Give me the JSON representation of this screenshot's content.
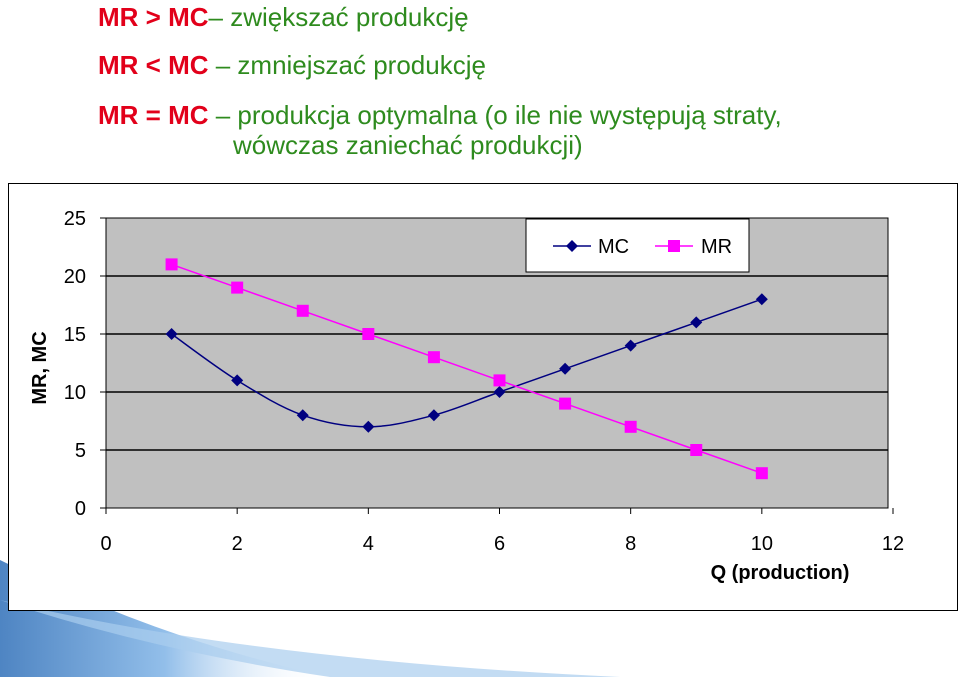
{
  "rules": {
    "r1": {
      "condition": "MR > MC",
      "dash": "–",
      "action": " zwiększać produkcję"
    },
    "r2": {
      "condition": "MR < MC",
      "dash": " –",
      "action": " zmniejszać produkcję"
    },
    "r3": {
      "condition": "MR = MC",
      "dash": " –",
      "action": " produkcja optymalna (o ile nie występują straty,",
      "continuation": "wówczas zaniechać produkcji)"
    }
  },
  "colors": {
    "condition": "#e2001a",
    "action": "#2e8b1e",
    "plot_bg": "#c0c0c0",
    "mc": "#000080",
    "mr": "#ff00ff",
    "deco_blue": "#4a8fd4"
  },
  "chart_data": {
    "type": "line",
    "title": "",
    "xlabel": "Q (production)",
    "ylabel": "MR, MC",
    "xlim": [
      0,
      12
    ],
    "ylim": [
      0,
      25
    ],
    "xticks": [
      0,
      2,
      4,
      6,
      8,
      10,
      12
    ],
    "yticks": [
      0,
      5,
      10,
      15,
      20,
      25
    ],
    "grid": "horizontal",
    "legend_position": "top-right",
    "series": [
      {
        "name": "MC",
        "marker": "diamond",
        "smooth": true,
        "x": [
          1,
          2,
          3,
          4,
          5,
          6,
          7,
          8,
          9,
          10
        ],
        "y": [
          15,
          11,
          8,
          7,
          8,
          10,
          12,
          14,
          16,
          18
        ]
      },
      {
        "name": "MR",
        "marker": "square",
        "smooth": false,
        "x": [
          1,
          2,
          3,
          4,
          5,
          6,
          7,
          8,
          9,
          10
        ],
        "y": [
          21,
          19,
          17,
          15,
          13,
          11,
          9,
          7,
          5,
          3
        ]
      }
    ]
  }
}
